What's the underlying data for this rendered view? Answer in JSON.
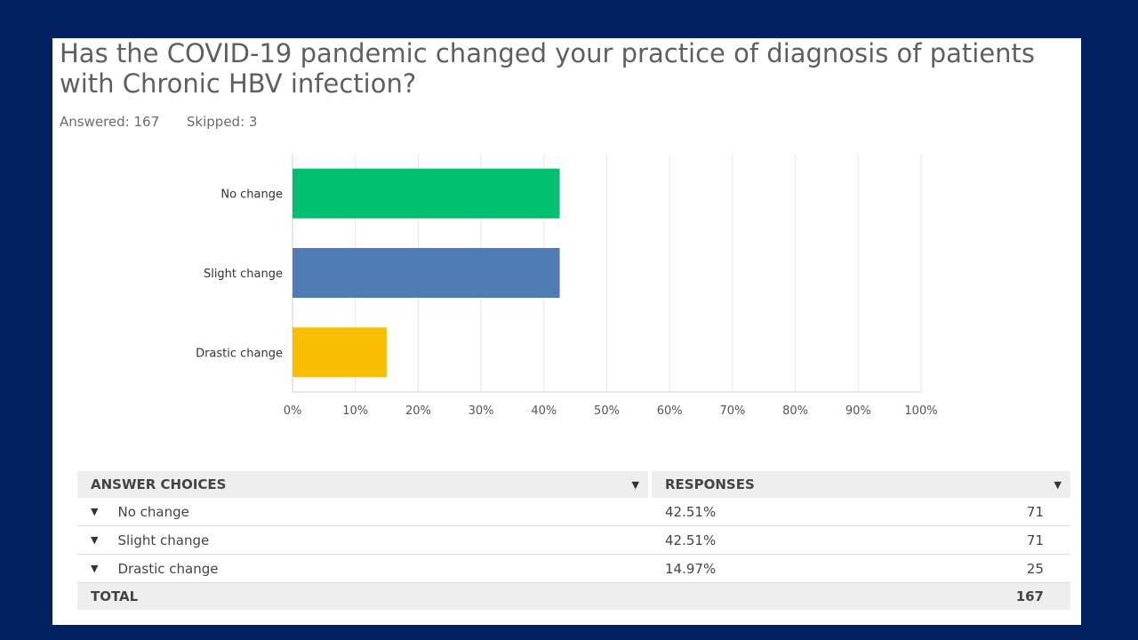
{
  "question": "Has the COVID-19 pandemic changed your practice of diagnosis of patients with Chronic HBV infection?",
  "answered": "Answered: 167",
  "skipped": "Skipped: 3",
  "chart_data": {
    "type": "bar",
    "orientation": "horizontal",
    "categories": [
      "No change",
      "Slight change",
      "Drastic change"
    ],
    "values": [
      42.51,
      42.51,
      14.97
    ],
    "colors": [
      "#00bf6f",
      "#507cb6",
      "#f9be00"
    ],
    "xlim": [
      0,
      100
    ],
    "xticks": [
      "0%",
      "10%",
      "20%",
      "30%",
      "40%",
      "50%",
      "60%",
      "70%",
      "80%",
      "90%",
      "100%"
    ],
    "grid": true
  },
  "table": {
    "header_choices": "ANSWER CHOICES",
    "header_responses": "RESPONSES",
    "rows": [
      {
        "label": "No change",
        "pct": "42.51%",
        "count": "71"
      },
      {
        "label": "Slight change",
        "pct": "42.51%",
        "count": "71"
      },
      {
        "label": "Drastic change",
        "pct": "14.97%",
        "count": "25"
      }
    ],
    "total_label": "TOTAL",
    "total_count": "167"
  },
  "colors": {
    "background": "#002060",
    "panel": "#ffffff"
  }
}
